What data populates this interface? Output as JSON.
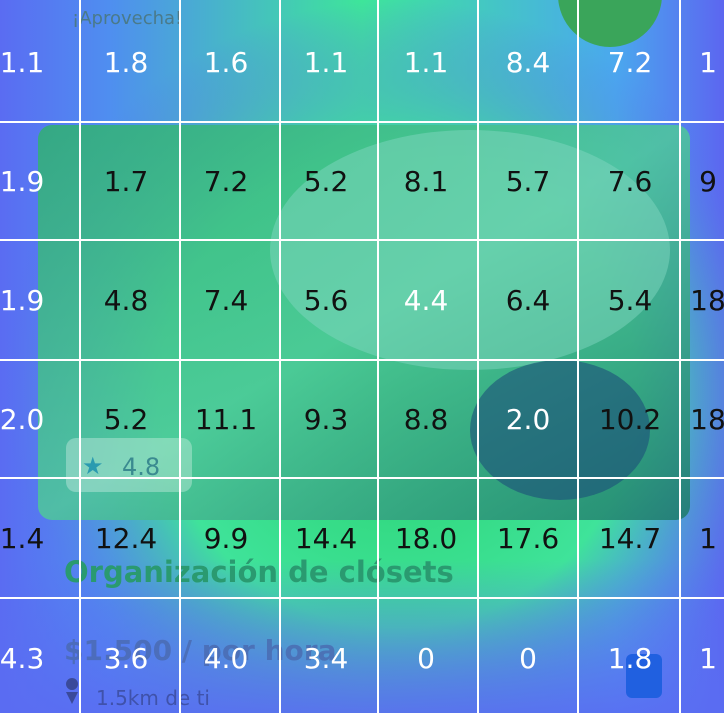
{
  "header": {
    "promo": "¡Aprovecha!"
  },
  "card": {
    "rating": "4.8",
    "title": "Organización de clósets",
    "price": "$1.500 / por hora",
    "distance": "1.5km de ti"
  },
  "heatmap": {
    "rows": [
      [
        "1.1",
        "1.8",
        "1.6",
        "1.1",
        "1.1",
        "8.4",
        "7.2",
        "1"
      ],
      [
        "1.9",
        "1.7",
        "7.2",
        "5.2",
        "8.1",
        "5.7",
        "7.6",
        "9"
      ],
      [
        "1.9",
        "4.8",
        "7.4",
        "5.6",
        "4.4",
        "6.4",
        "5.4",
        "18"
      ],
      [
        "2.0",
        "5.2",
        "11.1",
        "9.3",
        "8.8",
        "2.0",
        "10.2",
        "18"
      ],
      [
        "1.4",
        "12.4",
        "9.9",
        "14.4",
        "18.0",
        "17.6",
        "14.7",
        "1"
      ],
      [
        "4.3",
        "3.6",
        "4.0",
        "3.4",
        "0",
        "0",
        "1.8",
        "1"
      ]
    ]
  }
}
